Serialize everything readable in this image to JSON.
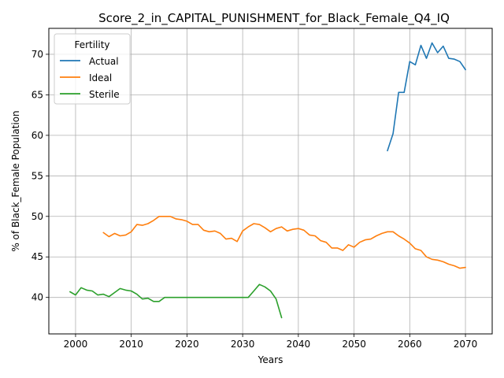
{
  "chart_data": {
    "type": "line",
    "title": "Score_2_in_CAPITAL_PUNISHMENT_for_Black_Female_Q4_IQ",
    "xlabel": "Years",
    "ylabel": "% of Black_Female Population",
    "xlim": [
      1995.2,
      2074.8
    ],
    "ylim": [
      35.5,
      73.2
    ],
    "xticks": [
      2000,
      2010,
      2020,
      2030,
      2040,
      2050,
      2060,
      2070
    ],
    "yticks": [
      40,
      45,
      50,
      55,
      60,
      65,
      70
    ],
    "grid": true,
    "legend": {
      "title": "Fertility",
      "position": "top-left"
    },
    "series": [
      {
        "name": "Actual",
        "color": "#1f77b4",
        "x": [
          2056,
          2057,
          2058,
          2059,
          2060,
          2061,
          2062,
          2063,
          2064,
          2065,
          2066,
          2067,
          2068,
          2069,
          2070
        ],
        "y": [
          58.1,
          60.2,
          65.3,
          65.3,
          69.1,
          68.7,
          71.1,
          69.5,
          71.4,
          70.2,
          71.0,
          69.5,
          69.4,
          69.1,
          68.1
        ]
      },
      {
        "name": "Ideal",
        "color": "#ff7f0e",
        "x": [
          2005,
          2006,
          2007,
          2008,
          2009,
          2010,
          2011,
          2012,
          2013,
          2014,
          2015,
          2016,
          2017,
          2018,
          2019,
          2020,
          2021,
          2022,
          2023,
          2024,
          2025,
          2026,
          2027,
          2028,
          2029,
          2030,
          2031,
          2032,
          2033,
          2034,
          2035,
          2036,
          2037,
          2038,
          2039,
          2040,
          2041,
          2042,
          2043,
          2044,
          2045,
          2046,
          2047,
          2048,
          2049,
          2050,
          2051,
          2052,
          2053,
          2054,
          2055,
          2056,
          2057,
          2058,
          2059,
          2060,
          2061,
          2062,
          2063,
          2064,
          2065,
          2066,
          2067,
          2068,
          2069,
          2070
        ],
        "y": [
          48.0,
          47.5,
          47.9,
          47.6,
          47.7,
          48.1,
          49.0,
          48.9,
          49.1,
          49.5,
          50.0,
          50.0,
          50.0,
          49.7,
          49.6,
          49.4,
          49.0,
          49.0,
          48.3,
          48.1,
          48.2,
          47.9,
          47.2,
          47.3,
          46.9,
          48.2,
          48.7,
          49.1,
          49.0,
          48.6,
          48.1,
          48.5,
          48.7,
          48.2,
          48.4,
          48.5,
          48.3,
          47.7,
          47.6,
          47.0,
          46.8,
          46.1,
          46.1,
          45.8,
          46.5,
          46.2,
          46.8,
          47.1,
          47.2,
          47.6,
          47.9,
          48.1,
          48.1,
          47.6,
          47.2,
          46.7,
          46.0,
          45.8,
          45.0,
          44.7,
          44.6,
          44.4,
          44.1,
          43.9,
          43.6,
          43.7
        ]
      },
      {
        "name": "Sterile",
        "color": "#2ca02c",
        "x": [
          1999,
          2000,
          2001,
          2002,
          2003,
          2004,
          2005,
          2006,
          2007,
          2008,
          2009,
          2010,
          2011,
          2012,
          2013,
          2014,
          2015,
          2016,
          2017,
          2018,
          2019,
          2020,
          2021,
          2022,
          2023,
          2024,
          2025,
          2026,
          2027,
          2028,
          2029,
          2030,
          2031,
          2032,
          2033,
          2034,
          2035,
          2036,
          2037
        ],
        "y": [
          40.7,
          40.3,
          41.2,
          40.9,
          40.8,
          40.3,
          40.4,
          40.1,
          40.6,
          41.1,
          40.9,
          40.8,
          40.4,
          39.8,
          39.9,
          39.5,
          39.5,
          40.0,
          40.0,
          40.0,
          40.0,
          40.0,
          40.0,
          40.0,
          40.0,
          40.0,
          40.0,
          40.0,
          40.0,
          40.0,
          40.0,
          40.0,
          40.0,
          40.8,
          41.6,
          41.3,
          40.8,
          39.8,
          37.5
        ]
      }
    ]
  }
}
